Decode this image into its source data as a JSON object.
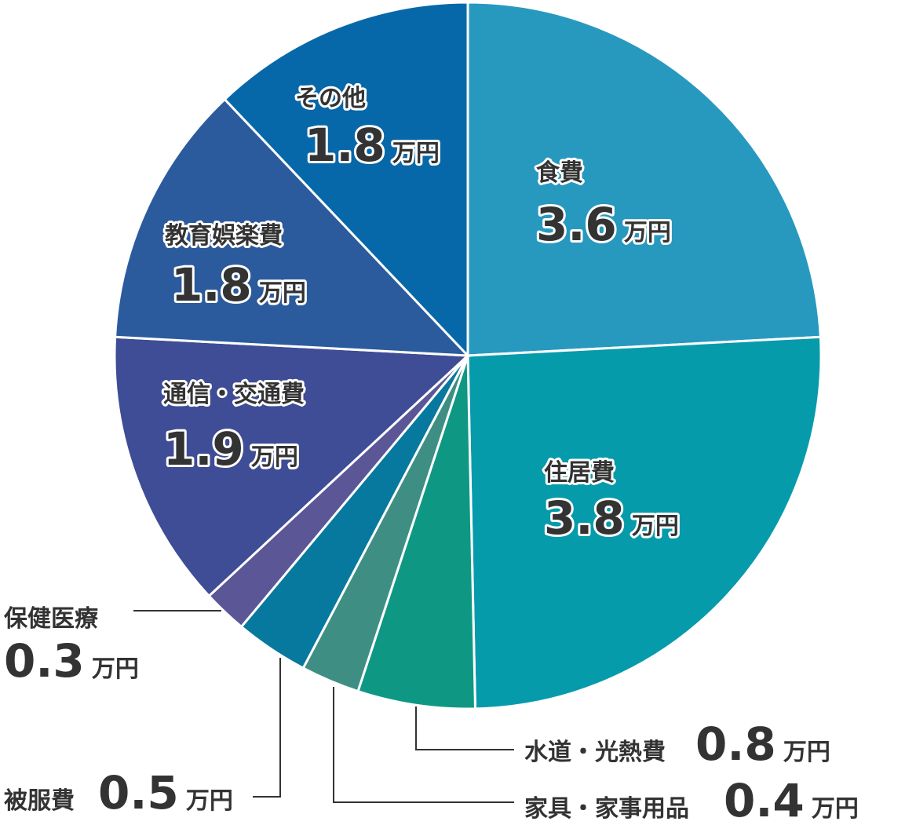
{
  "chart_data": {
    "type": "pie",
    "unit": "万円",
    "slices": [
      {
        "label": "食費",
        "value": 3.6,
        "color": "#2799bf"
      },
      {
        "label": "住居費",
        "value": 3.8,
        "color": "#069bab"
      },
      {
        "label": "水道・光熱費",
        "value": 0.8,
        "color": "#0e9884"
      },
      {
        "label": "家具・家事用品",
        "value": 0.4,
        "color": "#3f8e83"
      },
      {
        "label": "被服費",
        "value": 0.5,
        "color": "#07799f"
      },
      {
        "label": "保健医療",
        "value": 0.3,
        "color": "#5b5796"
      },
      {
        "label": "通信・交通費",
        "value": 1.9,
        "color": "#3f4c96"
      },
      {
        "label": "教育娯楽費",
        "value": 1.8,
        "color": "#2b5b9d"
      },
      {
        "label": "その他",
        "value": 1.8,
        "color": "#0768a9"
      }
    ]
  }
}
